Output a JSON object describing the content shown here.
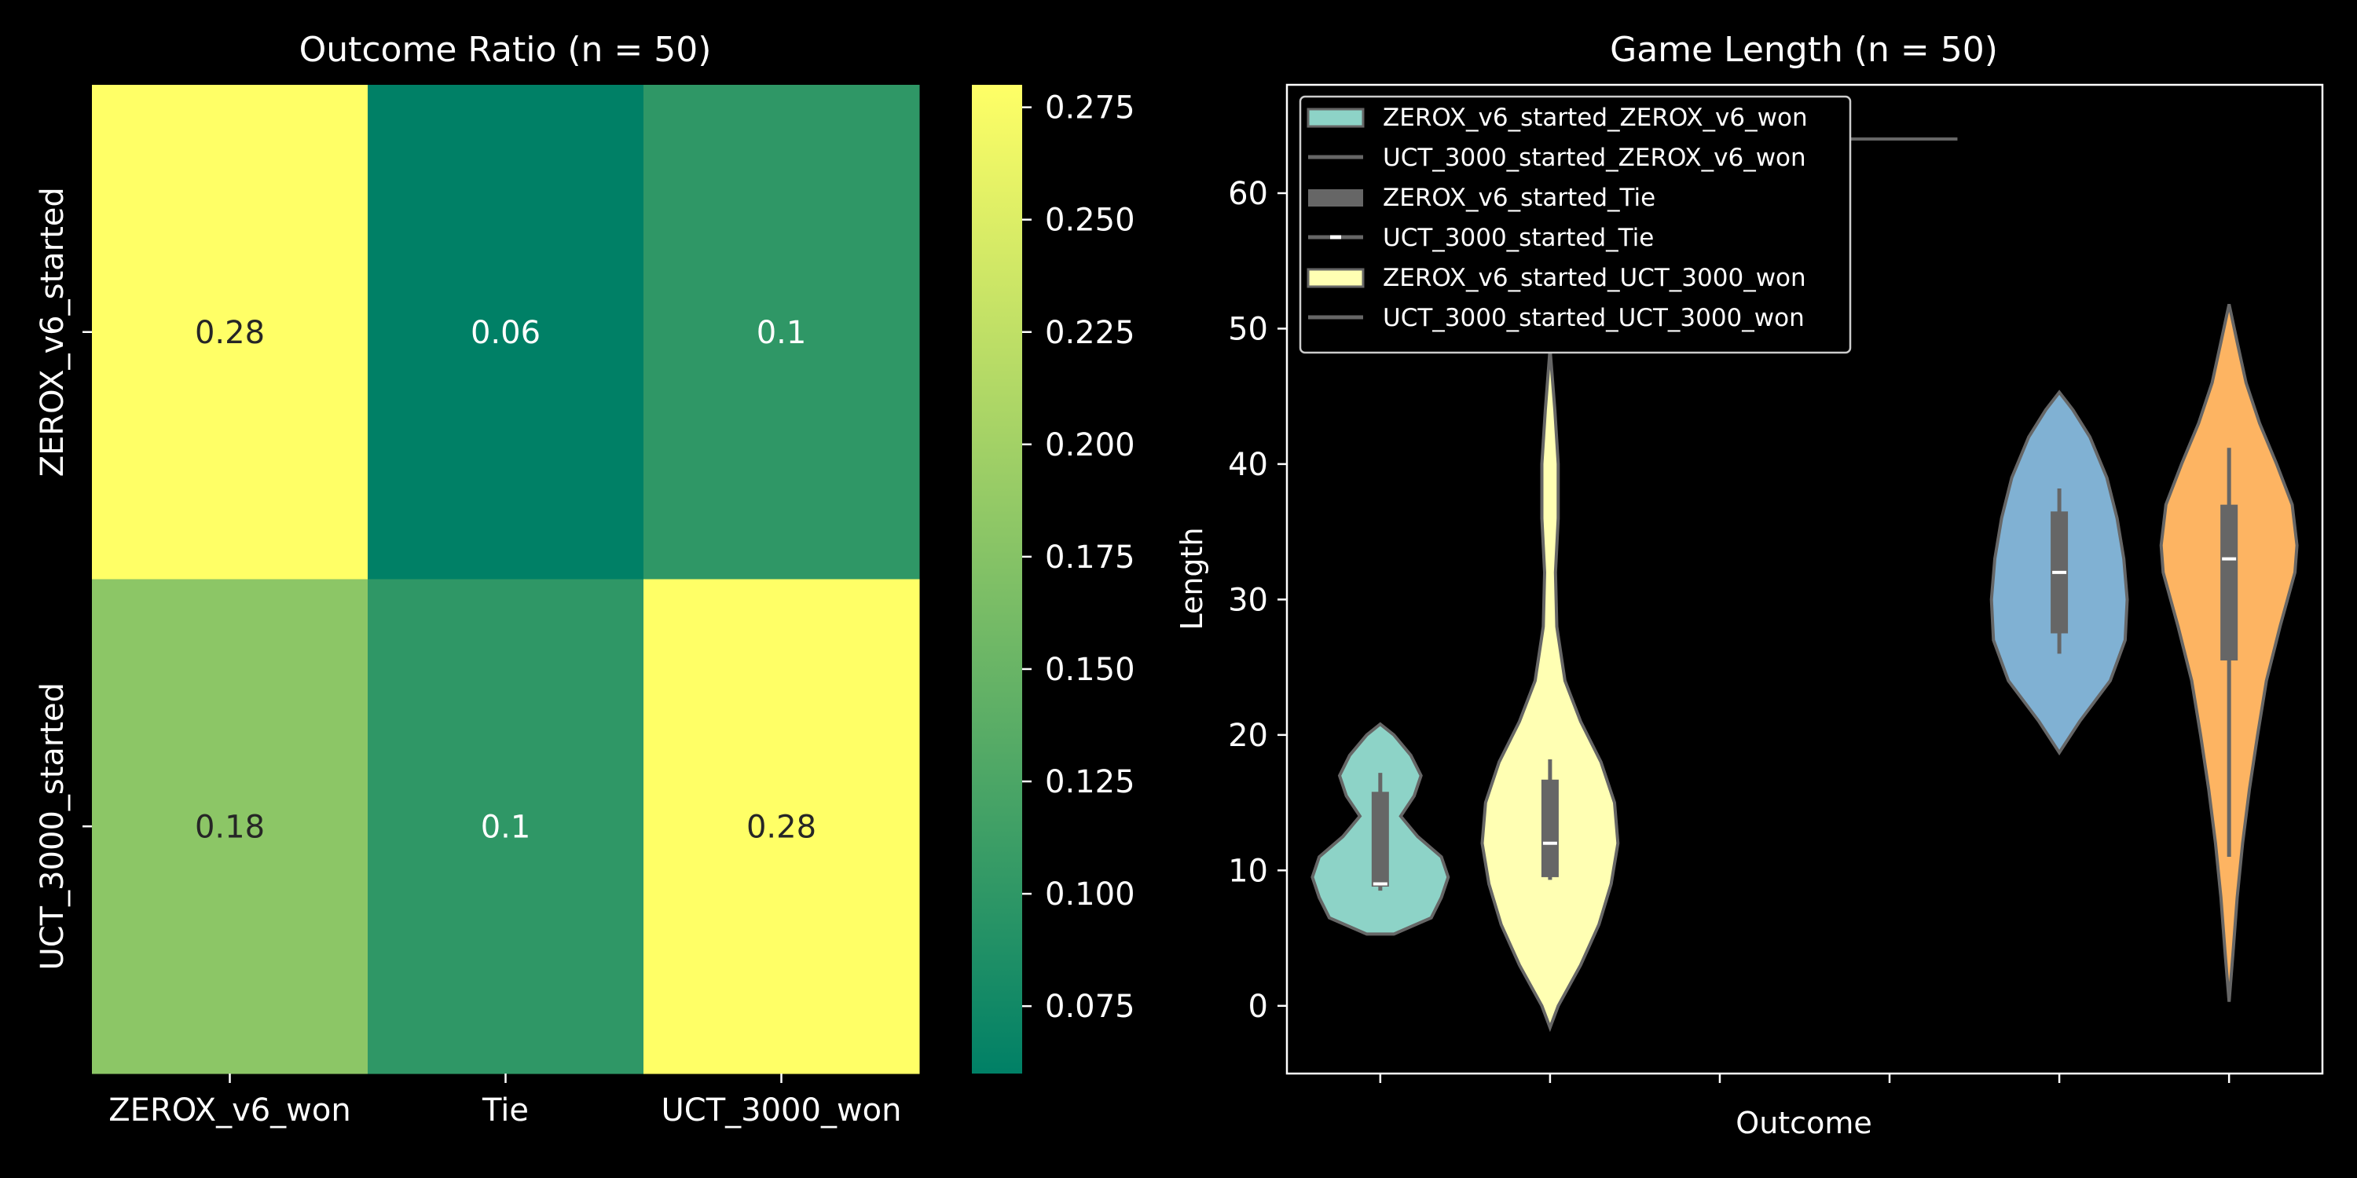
{
  "chart_data": [
    {
      "type": "heatmap",
      "title": "Outcome Ratio (n = 50)",
      "rows": [
        "ZEROX_v6_started",
        "UCT_3000_started"
      ],
      "columns": [
        "ZEROX_v6_won",
        "Tie",
        "UCT_3000_won"
      ],
      "values": [
        [
          0.28,
          0.06,
          0.1
        ],
        [
          0.18,
          0.1,
          0.28
        ]
      ],
      "value_labels": [
        [
          "0.28",
          "0.06",
          "0.1"
        ],
        [
          "0.18",
          "0.1",
          "0.28"
        ]
      ],
      "colormap": "summer",
      "colormap_stops": [
        "#008066",
        "#80c066",
        "#ffff66"
      ],
      "colorbar": {
        "range": [
          0.06,
          0.28
        ],
        "ticks": [
          0.075,
          0.1,
          0.125,
          0.15,
          0.175,
          0.2,
          0.225,
          0.25,
          0.275
        ],
        "tick_labels": [
          "0.075",
          "0.100",
          "0.125",
          "0.150",
          "0.175",
          "0.200",
          "0.225",
          "0.250",
          "0.275"
        ]
      }
    },
    {
      "type": "violin",
      "title": "Game Length (n = 50)",
      "xlabel": "Outcome",
      "ylabel": "Length",
      "ylim": [
        -5,
        68
      ],
      "yticks": [
        0,
        10,
        20,
        30,
        40,
        50,
        60
      ],
      "ytick_labels": [
        "0",
        "10",
        "20",
        "30",
        "40",
        "50",
        "60"
      ],
      "x_categories": 6,
      "legend": {
        "placement": "upper-left",
        "entries": [
          "ZEROX_v6_started_ZEROX_v6_won",
          "UCT_3000_started_ZEROX_v6_won",
          "ZEROX_v6_started_Tie",
          "UCT_3000_started_Tie",
          "ZEROX_v6_started_UCT_3000_won",
          "UCT_3000_started_UCT_3000_won"
        ]
      },
      "series": [
        {
          "x_index": 0,
          "color": "#8dd3c7",
          "min": 8.5,
          "q1": 8.8,
          "median": 9,
          "q3": 15.8,
          "max": 17.2,
          "kde_min": 5.3,
          "kde_max": 20.8,
          "profile": [
            [
              5.3,
              0.2
            ],
            [
              6.5,
              0.75
            ],
            [
              8,
              0.9
            ],
            [
              9.5,
              1.0
            ],
            [
              11,
              0.9
            ],
            [
              12.5,
              0.55
            ],
            [
              14,
              0.3
            ],
            [
              15.5,
              0.5
            ],
            [
              17,
              0.6
            ],
            [
              18.5,
              0.45
            ],
            [
              20,
              0.2
            ],
            [
              20.8,
              0
            ]
          ]
        },
        {
          "x_index": 1,
          "color": "#ffffb3",
          "min": 9.3,
          "q1": 9.5,
          "median": 12,
          "q3": 16.7,
          "max": 18.2,
          "kde_min": -1.6,
          "kde_max": 48.5,
          "profile": [
            [
              -1.6,
              0
            ],
            [
              0,
              0.12
            ],
            [
              3,
              0.45
            ],
            [
              6,
              0.72
            ],
            [
              9,
              0.9
            ],
            [
              12,
              1.0
            ],
            [
              15,
              0.95
            ],
            [
              18,
              0.75
            ],
            [
              21,
              0.45
            ],
            [
              24,
              0.22
            ],
            [
              28,
              0.1
            ],
            [
              32,
              0.08
            ],
            [
              36,
              0.12
            ],
            [
              40,
              0.12
            ],
            [
              44,
              0.07
            ],
            [
              48.5,
              0
            ]
          ]
        },
        {
          "x_index": 4,
          "color": "#80b1d3",
          "min": 26,
          "q1": 27.5,
          "median": 32,
          "q3": 36.5,
          "max": 38.2,
          "kde_min": 18.7,
          "kde_max": 45.3,
          "profile": [
            [
              18.7,
              0
            ],
            [
              21,
              0.3
            ],
            [
              24,
              0.75
            ],
            [
              27,
              0.97
            ],
            [
              30,
              1.0
            ],
            [
              33,
              0.95
            ],
            [
              36,
              0.85
            ],
            [
              39,
              0.7
            ],
            [
              42,
              0.45
            ],
            [
              44,
              0.2
            ],
            [
              45.3,
              0
            ]
          ]
        },
        {
          "x_index": 5,
          "color": "#fdb462",
          "min": 11,
          "q1": 25.5,
          "median": 33,
          "q3": 37,
          "max": 41.2,
          "kde_min": 0.3,
          "kde_max": 51.8,
          "profile": [
            [
              0.3,
              0
            ],
            [
              4,
              0.06
            ],
            [
              8,
              0.12
            ],
            [
              12,
              0.2
            ],
            [
              16,
              0.3
            ],
            [
              20,
              0.42
            ],
            [
              24,
              0.55
            ],
            [
              28,
              0.75
            ],
            [
              32,
              0.97
            ],
            [
              34,
              1.0
            ],
            [
              37,
              0.93
            ],
            [
              40,
              0.7
            ],
            [
              43,
              0.45
            ],
            [
              46,
              0.25
            ],
            [
              49,
              0.12
            ],
            [
              51.8,
              0
            ]
          ]
        }
      ],
      "stray_line": {
        "x_index_from": 2.1,
        "x_index_to": 3.4,
        "y": 64
      }
    }
  ]
}
